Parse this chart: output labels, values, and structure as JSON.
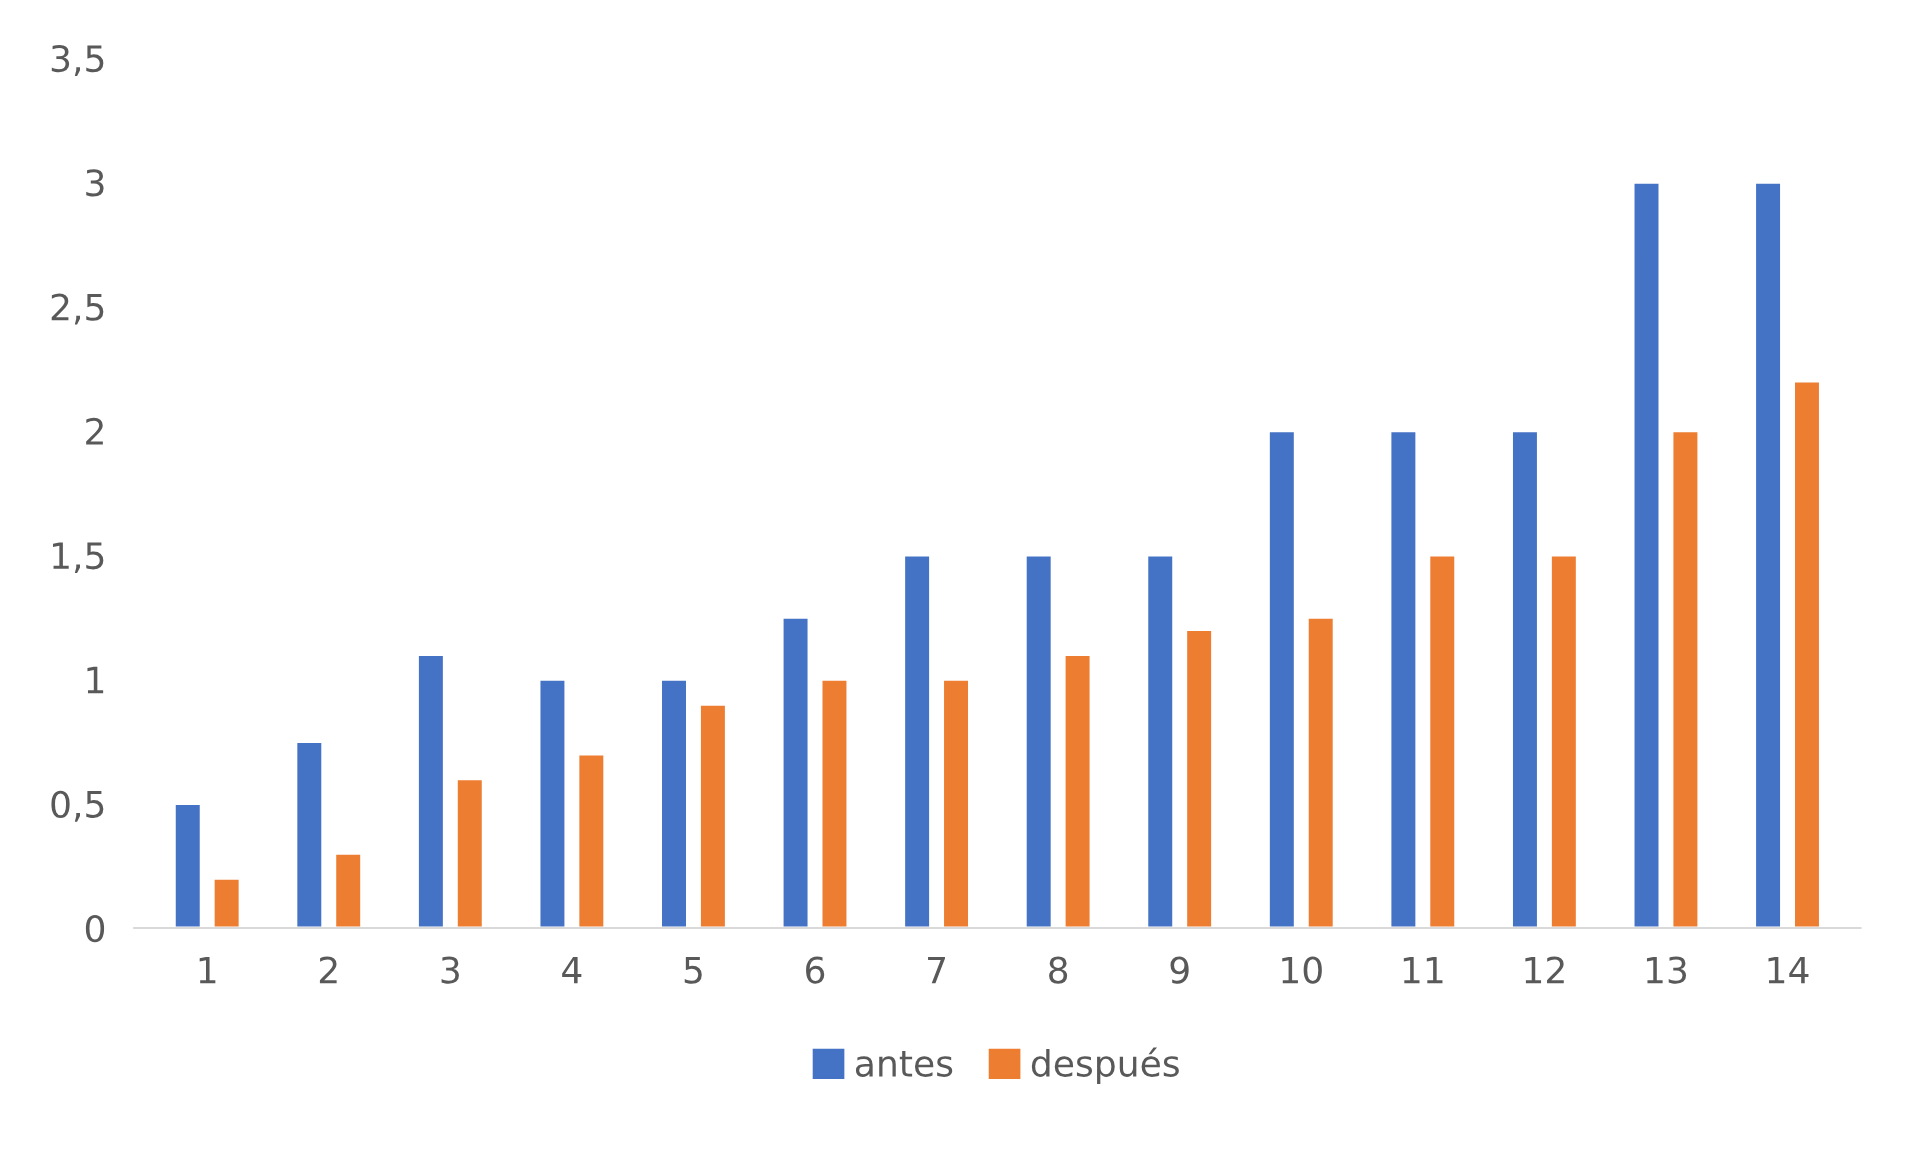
{
  "chart_data": {
    "type": "bar",
    "categories": [
      "1",
      "2",
      "3",
      "4",
      "5",
      "6",
      "7",
      "8",
      "9",
      "10",
      "11",
      "12",
      "13",
      "14"
    ],
    "series": [
      {
        "name": "antes",
        "color": "#4472c4",
        "values": [
          0.5,
          0.75,
          1.1,
          1,
          1,
          1.25,
          1.5,
          1.5,
          1.5,
          2,
          2,
          2,
          3,
          3
        ]
      },
      {
        "name": "después",
        "color": "#ed7d31",
        "values": [
          0.2,
          0.3,
          0.6,
          0.7,
          0.9,
          1,
          1,
          1.1,
          1.2,
          1.25,
          1.5,
          1.5,
          2,
          2.2
        ]
      }
    ],
    "ylim": [
      0,
      3.5
    ],
    "yticks": [
      0,
      {
        "value": 0.5,
        "label": "0,5"
      },
      1,
      {
        "value": 1.5,
        "label": "1,5"
      },
      2,
      {
        "value": 2.5,
        "label": "2,5"
      },
      3,
      {
        "value": 3.5,
        "label": "3,5"
      }
    ],
    "grid": false,
    "legend": "bottom"
  }
}
